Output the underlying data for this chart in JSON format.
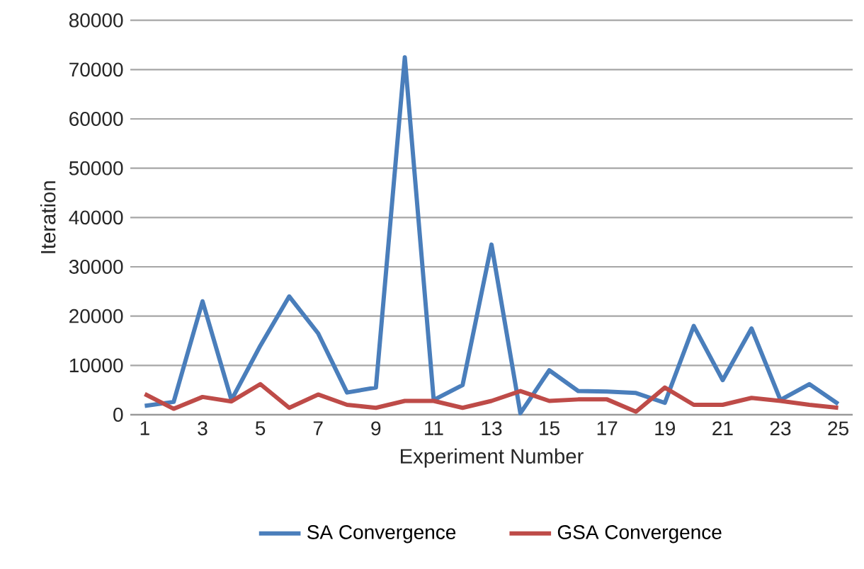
{
  "chart_data": {
    "type": "line",
    "xlabel": "Experiment Number",
    "ylabel": "Iteration",
    "categories": [
      "1",
      null,
      "3",
      null,
      "5",
      null,
      "7",
      null,
      "9",
      null,
      "11",
      null,
      "13",
      null,
      "15",
      null,
      "17",
      null,
      "19",
      null,
      "21",
      null,
      "23",
      null,
      "25"
    ],
    "series": [
      {
        "name": "SA  Convergence",
        "color": "#4a7ebb",
        "values": [
          1800,
          2600,
          23000,
          3000,
          14000,
          24000,
          16500,
          4500,
          5500,
          72500,
          3000,
          6000,
          34500,
          300,
          9000,
          4800,
          4700,
          4400,
          2400,
          18000,
          7000,
          17500,
          3000,
          6200,
          2200
        ]
      },
      {
        "name": "GSA Convergence",
        "color": "#be4b48",
        "values": [
          4200,
          1200,
          3600,
          2700,
          6200,
          1400,
          4100,
          2000,
          1400,
          2800,
          2800,
          1400,
          2800,
          4800,
          2800,
          3100,
          3100,
          600,
          5500,
          2000,
          2000,
          3400,
          2800,
          2000,
          1400
        ]
      }
    ],
    "ylim": [
      0,
      80000
    ],
    "yticks": [
      0,
      10000,
      20000,
      30000,
      40000,
      50000,
      60000,
      70000,
      80000
    ],
    "grid": "y",
    "legend": "bottom",
    "marker": "none",
    "line_style": "solid"
  }
}
